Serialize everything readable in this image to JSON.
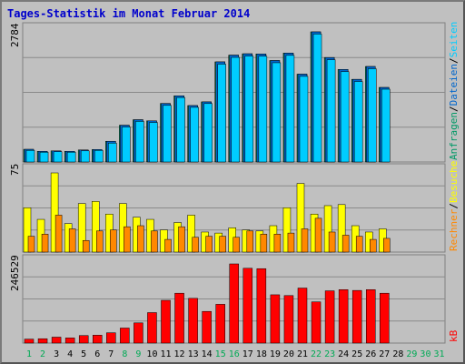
{
  "title": "Tages-Statistik im Monat Februar 2014",
  "colors": {
    "background": "#c0c0c0",
    "hits": "#009966",
    "files": "#0066cc",
    "pages": "#00ccff",
    "visits": "#ffff00",
    "sites": "#ff8800",
    "kbytes": "#ff0000",
    "weekend_day": "#00aa55",
    "future_day": "#00aa55"
  },
  "chart_data": [
    {
      "type": "bar",
      "panel": "top",
      "ymax_label": "2784",
      "ymax": 2784,
      "series": [
        {
          "name": "Anfragen",
          "values": [
            271,
            228,
            238,
            228,
            257,
            266,
            443,
            786,
            904,
            880,
            1252,
            1416,
            1207,
            1286,
            2142,
            2286,
            2315,
            2311,
            2171,
            2330,
            1879,
            2784,
            2235,
            1980,
            1768,
            2043,
            1595
          ]
        },
        {
          "name": "Dateien",
          "values": [
            271,
            228,
            238,
            228,
            257,
            266,
            443,
            786,
            904,
            880,
            1252,
            1416,
            1207,
            1286,
            2142,
            2286,
            2315,
            2311,
            2171,
            2330,
            1879,
            2784,
            2235,
            1980,
            1768,
            2043,
            1595
          ]
        },
        {
          "name": "Seiten",
          "values": [
            247,
            209,
            219,
            209,
            238,
            247,
            404,
            748,
            868,
            845,
            1211,
            1379,
            1169,
            1250,
            2093,
            2238,
            2267,
            2263,
            2123,
            2281,
            1832,
            2737,
            2187,
            1932,
            1721,
            1995,
            1557
          ]
        }
      ],
      "xlabel": "",
      "ylabel": ""
    },
    {
      "type": "bar",
      "panel": "middle",
      "ymax_label": "75",
      "ymax": 75,
      "series": [
        {
          "name": "Besuche",
          "values": [
            42,
            31,
            75,
            27,
            46,
            48,
            36,
            46,
            33,
            31,
            21,
            28,
            35,
            19,
            18,
            23,
            21,
            20,
            25,
            42,
            65,
            36,
            44,
            45,
            25,
            19,
            22
          ]
        },
        {
          "name": "Rechner",
          "values": [
            15,
            17,
            35,
            22,
            11,
            20,
            21,
            24,
            25,
            20,
            12,
            24,
            14,
            15,
            15,
            14,
            20,
            17,
            17,
            18,
            22,
            32,
            19,
            16,
            15,
            12,
            13
          ]
        }
      ],
      "xlabel": "",
      "ylabel": ""
    },
    {
      "type": "bar",
      "panel": "bottom",
      "ymax_label": "246529",
      "ymax": 246529,
      "series": [
        {
          "name": "kB",
          "values": [
            12327,
            13560,
            18490,
            16025,
            23421,
            24654,
            32049,
            46840,
            62864,
            94911,
            133126,
            155314,
            139290,
            98612,
            120800,
            246529,
            232968,
            231736,
            150382,
            147916,
            171337,
            128196,
            162709,
            166407,
            163942,
            166407,
            155314
          ]
        }
      ],
      "xlabel": "",
      "ylabel": ""
    }
  ],
  "days": [
    "1",
    "2",
    "3",
    "4",
    "5",
    "6",
    "7",
    "8",
    "9",
    "10",
    "11",
    "12",
    "13",
    "14",
    "15",
    "16",
    "17",
    "18",
    "19",
    "20",
    "21",
    "22",
    "23",
    "24",
    "25",
    "26",
    "27",
    "28",
    "29",
    "30",
    "31"
  ],
  "right_labels": {
    "top": {
      "a": "Anfragen",
      "b": "Dateien",
      "c": "Seiten"
    },
    "middle": {
      "a": "Besuche",
      "b": "Rechner"
    },
    "bottom": {
      "a": "kB"
    },
    "sep": "/"
  }
}
